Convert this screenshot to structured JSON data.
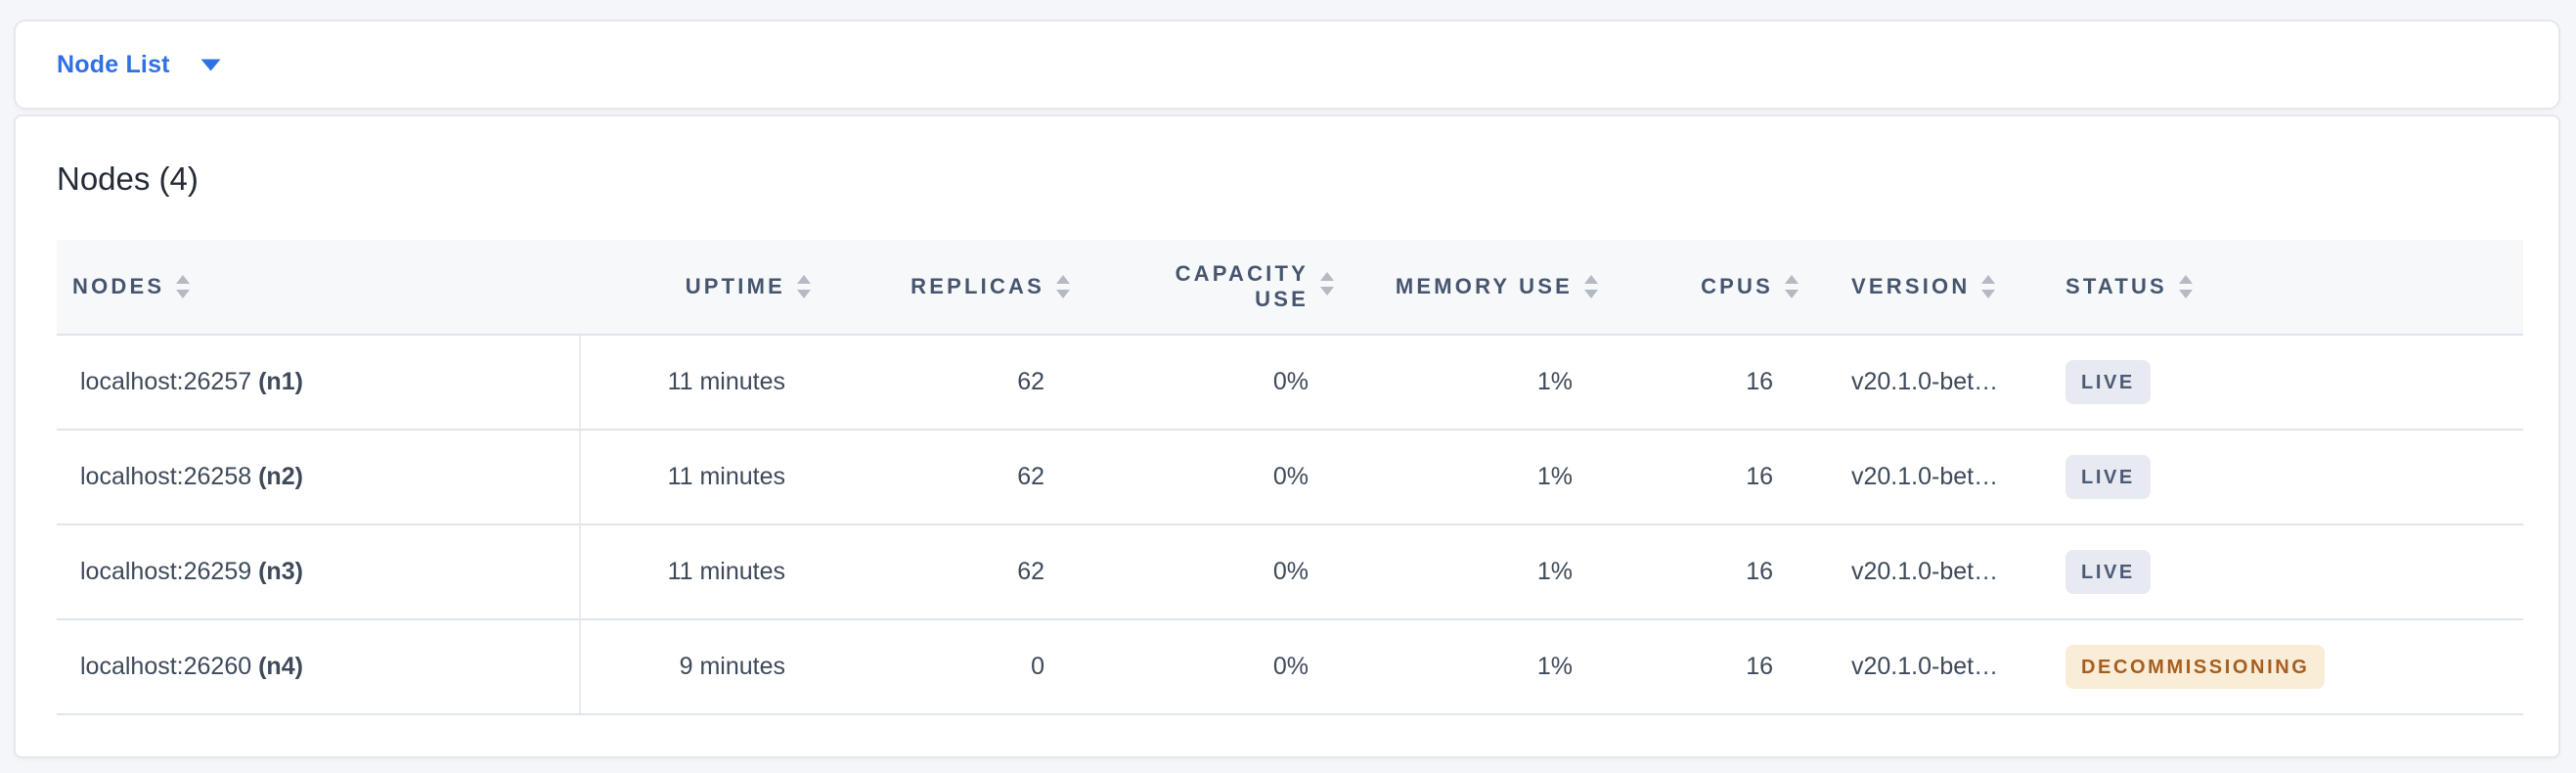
{
  "view_selector": {
    "label": "Node List"
  },
  "card": {
    "title": "Nodes (4)"
  },
  "table": {
    "columns": [
      {
        "key": "nodes",
        "label": "NODES",
        "align": "left"
      },
      {
        "key": "uptime",
        "label": "UPTIME",
        "align": "right"
      },
      {
        "key": "replicas",
        "label": "REPLICAS",
        "align": "right"
      },
      {
        "key": "capacity_use",
        "label": "CAPACITY USE",
        "align": "right"
      },
      {
        "key": "memory_use",
        "label": "MEMORY USE",
        "align": "right"
      },
      {
        "key": "cpus",
        "label": "CPUS",
        "align": "right"
      },
      {
        "key": "version",
        "label": "VERSION",
        "align": "left"
      },
      {
        "key": "status",
        "label": "STATUS",
        "align": "left"
      }
    ],
    "rows": [
      {
        "address": "localhost:26257",
        "node_id": "(n1)",
        "uptime": "11 minutes",
        "replicas": "62",
        "capacity_use": "0%",
        "memory_use": "1%",
        "cpus": "16",
        "version": "v20.1.0-bet…",
        "status": "LIVE",
        "status_type": "live"
      },
      {
        "address": "localhost:26258",
        "node_id": "(n2)",
        "uptime": "11 minutes",
        "replicas": "62",
        "capacity_use": "0%",
        "memory_use": "1%",
        "cpus": "16",
        "version": "v20.1.0-bet…",
        "status": "LIVE",
        "status_type": "live"
      },
      {
        "address": "localhost:26259",
        "node_id": "(n3)",
        "uptime": "11 minutes",
        "replicas": "62",
        "capacity_use": "0%",
        "memory_use": "1%",
        "cpus": "16",
        "version": "v20.1.0-bet…",
        "status": "LIVE",
        "status_type": "live"
      },
      {
        "address": "localhost:26260",
        "node_id": "(n4)",
        "uptime": "9 minutes",
        "replicas": "0",
        "capacity_use": "0%",
        "memory_use": "1%",
        "cpus": "16",
        "version": "v20.1.0-bet…",
        "status": "DECOMMISSIONING",
        "status_type": "decommissioning"
      }
    ]
  },
  "colors": {
    "page_bg": "#F4F6FA",
    "card_bg": "#FFFFFF",
    "card_border": "#E4E7ED",
    "accent_blue": "#2F70E4",
    "title_text": "#242B37",
    "header_bg": "#F7F8FA",
    "header_text": "#46556E",
    "cell_text": "#3E4959",
    "row_border": "#E0E4EB",
    "divider": "#E9EBF0",
    "sort_icon": "#B4B9C2",
    "badge_live_bg": "#E7EAF1",
    "badge_live_text": "#4C5A74",
    "badge_warn_bg": "#F9EDD8",
    "badge_warn_text": "#A65E1E"
  }
}
